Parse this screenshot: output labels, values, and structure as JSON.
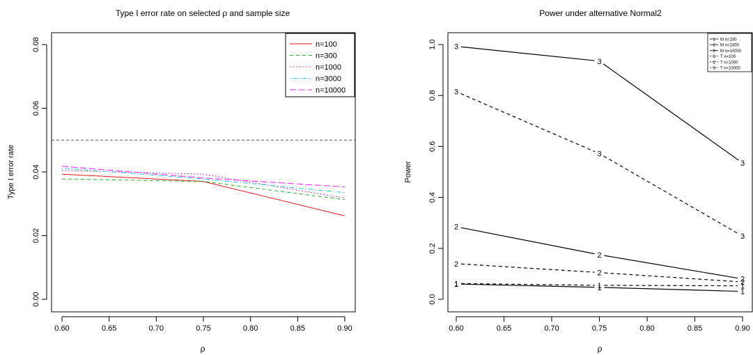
{
  "chart_data": [
    {
      "type": "line",
      "title": "Type I error rate on selected ρ and sample size",
      "xlabel": "ρ",
      "ylabel": "Type I error rate",
      "xlim": [
        0.6,
        0.9
      ],
      "ylim": [
        0.0,
        0.08
      ],
      "xticks": [
        "0.60",
        "0.65",
        "0.70",
        "0.75",
        "0.80",
        "0.85",
        "0.90"
      ],
      "yticks": [
        "0.00",
        "0.02",
        "0.04",
        "0.06",
        "0.08"
      ],
      "grid": false,
      "legend_position": "top-right",
      "reference_line": {
        "y": 0.05,
        "style": "dashed",
        "color": "#555555"
      },
      "x": [
        0.6,
        0.75,
        0.9
      ],
      "series": [
        {
          "name": "n=100",
          "values": [
            0.0393,
            0.037,
            0.0262
          ],
          "color": "#e8191c",
          "dash": "solid"
        },
        {
          "name": "n=300",
          "values": [
            0.0378,
            0.037,
            0.0313
          ],
          "color": "#1db21d",
          "dash": "dashed"
        },
        {
          "name": "n=1000",
          "values": [
            0.0405,
            0.0393,
            0.0318
          ],
          "color": "#b200b2",
          "dash": "dotted"
        },
        {
          "name": "n=3000",
          "values": [
            0.0412,
            0.0378,
            0.0335
          ],
          "color": "#19c9e6",
          "dash": "dotdash"
        },
        {
          "name": "n=10000",
          "values": [
            0.0418,
            0.0381,
            0.0353
          ],
          "color": "#ff19ff",
          "dash": "longdash"
        }
      ]
    },
    {
      "type": "line",
      "title": "Power under alternative Normal2",
      "xlabel": "ρ",
      "ylabel": "Power",
      "xlim": [
        0.6,
        0.9
      ],
      "ylim": [
        0.0,
        1.0
      ],
      "xticks": [
        "0.60",
        "0.65",
        "0.70",
        "0.75",
        "0.80",
        "0.85",
        "0.90"
      ],
      "yticks": [
        "0.0",
        "0.2",
        "0.4",
        "0.6",
        "0.8",
        "1.0"
      ],
      "grid": false,
      "legend_position": "top-right",
      "x": [
        0.6,
        0.75,
        0.9
      ],
      "series": [
        {
          "name": "M n=100",
          "symbol": "1",
          "values": [
            0.06,
            0.047,
            0.031
          ],
          "color": "#000000",
          "dash": "solid"
        },
        {
          "name": "M n=1000",
          "symbol": "2",
          "values": [
            0.285,
            0.175,
            0.08
          ],
          "color": "#000000",
          "dash": "solid"
        },
        {
          "name": "M n=10000",
          "symbol": "3",
          "values": [
            0.993,
            0.935,
            0.535
          ],
          "color": "#000000",
          "dash": "solid"
        },
        {
          "name": "T n=100",
          "symbol": "1",
          "values": [
            0.062,
            0.055,
            0.053
          ],
          "color": "#000000",
          "dash": "dashed"
        },
        {
          "name": "T n=1000",
          "symbol": "2",
          "values": [
            0.14,
            0.105,
            0.068
          ],
          "color": "#000000",
          "dash": "dashed"
        },
        {
          "name": "T n=10000",
          "symbol": "3",
          "values": [
            0.815,
            0.572,
            0.248
          ],
          "color": "#000000",
          "dash": "dashed"
        }
      ]
    }
  ]
}
